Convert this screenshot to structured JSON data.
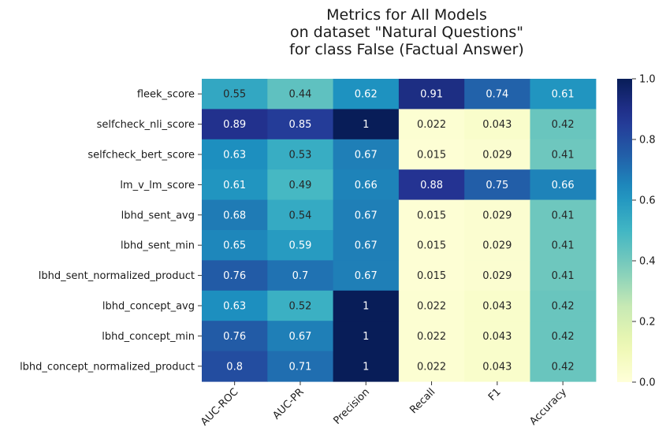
{
  "chart_data": {
    "type": "heatmap",
    "title_lines": [
      "Metrics for All Models",
      "on dataset \"Natural Questions\"",
      "for class False (Factual Answer)"
    ],
    "rows": [
      "fleek_score",
      "selfcheck_nli_score",
      "selfcheck_bert_score",
      "lm_v_lm_score",
      "lbhd_sent_avg",
      "lbhd_sent_min",
      "lbhd_sent_normalized_product",
      "lbhd_concept_avg",
      "lbhd_concept_min",
      "lbhd_concept_normalized_product"
    ],
    "columns": [
      "AUC-ROC",
      "AUC-PR",
      "Precision",
      "Recall",
      "F1",
      "Accuracy"
    ],
    "values": [
      [
        0.55,
        0.44,
        0.62,
        0.91,
        0.74,
        0.61
      ],
      [
        0.89,
        0.85,
        1,
        0.022,
        0.043,
        0.42
      ],
      [
        0.63,
        0.53,
        0.67,
        0.015,
        0.029,
        0.41
      ],
      [
        0.61,
        0.49,
        0.66,
        0.88,
        0.75,
        0.66
      ],
      [
        0.68,
        0.54,
        0.67,
        0.015,
        0.029,
        0.41
      ],
      [
        0.65,
        0.59,
        0.67,
        0.015,
        0.029,
        0.41
      ],
      [
        0.76,
        0.7,
        0.67,
        0.015,
        0.029,
        0.41
      ],
      [
        0.63,
        0.52,
        1,
        0.022,
        0.043,
        0.42
      ],
      [
        0.76,
        0.67,
        1,
        0.022,
        0.043,
        0.42
      ],
      [
        0.8,
        0.71,
        1,
        0.022,
        0.043,
        0.42
      ]
    ],
    "colormap": "YlGnBu",
    "colorbar": {
      "range": [
        0,
        1
      ],
      "ticks": [
        "0.0",
        "0.2",
        "0.4",
        "0.6",
        "0.8",
        "1.0"
      ]
    },
    "annotations": "cell values"
  }
}
